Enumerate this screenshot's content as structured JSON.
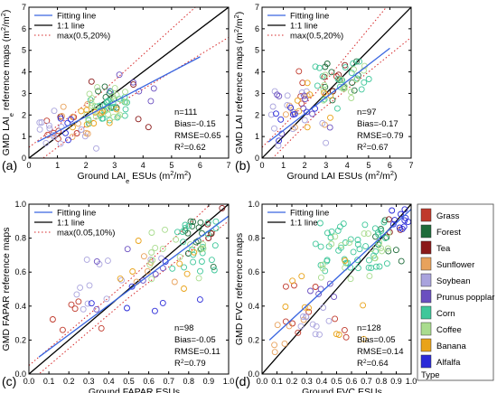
{
  "colors": {
    "Grass": "#c0392b",
    "Forest": "#1e6b3a",
    "Tea": "#8b1a1a",
    "Sunflower": "#e8a25c",
    "Soybean": "#a9a3dd",
    "Prunus popplar": "#6a4fc0",
    "Corn": "#3fc79a",
    "Coffee": "#a9dc8e",
    "Banana": "#e9a319",
    "Alfalfa": "#2a2ad8",
    "fit": "#3a66e0",
    "one_to_one": "#000000",
    "tolerance": "#d62728"
  },
  "legend": {
    "title": "Type",
    "types": [
      "Grass",
      "Forest",
      "Tea",
      "Sunflower",
      "Soybean",
      "Prunus popplar",
      "Corn",
      "Coffee",
      "Banana",
      "Alfalfa"
    ]
  },
  "chart_data": [
    {
      "type": "scatter",
      "panel": "(a)",
      "xlabel": "Ground LAIe ESUs (m2/m2)",
      "ylabel": "GMD LAIe reference maps (m2/m2)",
      "xlim": [
        0,
        7
      ],
      "ylim": [
        0,
        7
      ],
      "xticks": [
        "0",
        "1",
        "2",
        "3",
        "4",
        "5",
        "6",
        "7"
      ],
      "yticks": [
        "0",
        "1",
        "2",
        "3",
        "4",
        "5",
        "6",
        "7"
      ],
      "legend_lines": [
        "Fitting line",
        "1:1 line",
        "max(0.5,20%)"
      ],
      "stats": [
        "n=111",
        "Bias=-0.15",
        "RMSE=0.65",
        "R2=0.62"
      ],
      "fit": {
        "x": [
          0.3,
          6.0
        ],
        "y": [
          0.75,
          4.7
        ]
      },
      "tolerance": {
        "abs": 0.5,
        "rel": 0.2
      },
      "seed": 11,
      "clusters": [
        {
          "c": "Grass",
          "n": 7,
          "x": [
            0.5,
            2.0
          ],
          "y": [
            0.8,
            2.1
          ]
        },
        {
          "c": "Forest",
          "n": 8,
          "x": [
            2.3,
            3.3
          ],
          "y": [
            2.3,
            3.4
          ]
        },
        {
          "c": "Tea",
          "n": 5,
          "x": [
            1.0,
            4.3
          ],
          "y": [
            1.3,
            4.2
          ]
        },
        {
          "c": "Sunflower",
          "n": 8,
          "x": [
            0.7,
            2.5
          ],
          "y": [
            0.9,
            2.6
          ]
        },
        {
          "c": "Soybean",
          "n": 14,
          "x": [
            0.3,
            2.4
          ],
          "y": [
            0.4,
            2.2
          ]
        },
        {
          "c": "Prunus popplar",
          "n": 6,
          "x": [
            2.5,
            4.6
          ],
          "y": [
            2.6,
            3.9
          ]
        },
        {
          "c": "Corn",
          "n": 26,
          "x": [
            2.0,
            3.5
          ],
          "y": [
            1.6,
            3.2
          ]
        },
        {
          "c": "Coffee",
          "n": 22,
          "x": [
            2.0,
            3.4
          ],
          "y": [
            1.8,
            3.3
          ]
        },
        {
          "c": "Banana",
          "n": 10,
          "x": [
            1.5,
            3.1
          ],
          "y": [
            1.4,
            2.6
          ]
        },
        {
          "c": "Alfalfa",
          "n": 5,
          "x": [
            0.4,
            1.8
          ],
          "y": [
            0.7,
            1.9
          ]
        }
      ]
    },
    {
      "type": "scatter",
      "panel": "(b)",
      "xlabel": "Ground LAI ESUs (m2/m2)",
      "ylabel": "GMD LAI reference maps (m2/m2)",
      "xlim": [
        0,
        7
      ],
      "ylim": [
        0,
        7
      ],
      "xticks": [
        "0",
        "1",
        "2",
        "3",
        "4",
        "5",
        "6",
        "7"
      ],
      "yticks": [
        "0",
        "1",
        "2",
        "3",
        "4",
        "5",
        "6",
        "7"
      ],
      "legend_lines": [
        "Fitting line",
        "1:1 line",
        "max(0.5,20%)"
      ],
      "stats": [
        "n=97",
        "Bias=-0.17",
        "RMSE=0.79",
        "R2=0.67"
      ],
      "fit": {
        "x": [
          0.3,
          6.0
        ],
        "y": [
          0.75,
          5.1
        ]
      },
      "tolerance": {
        "abs": 0.5,
        "rel": 0.2
      },
      "seed": 23,
      "clusters": [
        {
          "c": "Grass",
          "n": 6,
          "x": [
            1.0,
            4.5
          ],
          "y": [
            1.5,
            4.3
          ]
        },
        {
          "c": "Forest",
          "n": 12,
          "x": [
            2.8,
            4.8
          ],
          "y": [
            2.6,
            4.7
          ]
        },
        {
          "c": "Tea",
          "n": 4,
          "x": [
            2.8,
            4.5
          ],
          "y": [
            3.0,
            4.4
          ]
        },
        {
          "c": "Sunflower",
          "n": 6,
          "x": [
            1.0,
            3.0
          ],
          "y": [
            1.3,
            3.0
          ]
        },
        {
          "c": "Soybean",
          "n": 14,
          "x": [
            0.4,
            3.0
          ],
          "y": [
            0.5,
            3.2
          ]
        },
        {
          "c": "Prunus popplar",
          "n": 8,
          "x": [
            0.6,
            3.2
          ],
          "y": [
            0.8,
            3.1
          ]
        },
        {
          "c": "Corn",
          "n": 17,
          "x": [
            2.5,
            5.2
          ],
          "y": [
            2.2,
            4.6
          ]
        },
        {
          "c": "Coffee",
          "n": 14,
          "x": [
            2.8,
            5.0
          ],
          "y": [
            2.6,
            4.5
          ]
        },
        {
          "c": "Banana",
          "n": 8,
          "x": [
            1.5,
            3.5
          ],
          "y": [
            1.4,
            3.5
          ]
        },
        {
          "c": "Alfalfa",
          "n": 8,
          "x": [
            0.5,
            2.5
          ],
          "y": [
            0.7,
            2.4
          ]
        }
      ]
    },
    {
      "type": "scatter",
      "panel": "(c)",
      "xlabel": "Ground FAPAR ESUs",
      "ylabel": "GMD FAPAR reference maps",
      "xlim": [
        0,
        1
      ],
      "ylim": [
        0,
        1
      ],
      "xticks": [
        "0.0",
        "0.1",
        "0.2",
        "0.3",
        "0.4",
        "0.5",
        "0.6",
        "0.7",
        "0.8",
        "0.9",
        "1.0"
      ],
      "yticks": [
        "0.0",
        "0.2",
        "0.4",
        "0.6",
        "0.8",
        "1.0"
      ],
      "legend_lines": [
        "Fitting line",
        "1:1 line",
        "max(0.05,10%)"
      ],
      "stats": [
        "n=98",
        "Bias=-0.05",
        "RMSE=0.11",
        "R2=0.79"
      ],
      "fit": {
        "x": [
          0.05,
          1.0
        ],
        "y": [
          0.1,
          0.93
        ]
      },
      "tolerance": {
        "abs": 0.05,
        "rel": 0.1
      },
      "seed": 37,
      "clusters": [
        {
          "c": "Grass",
          "n": 6,
          "x": [
            0.1,
            0.55
          ],
          "y": [
            0.25,
            0.5
          ]
        },
        {
          "c": "Forest",
          "n": 14,
          "x": [
            0.78,
            0.97
          ],
          "y": [
            0.6,
            0.9
          ]
        },
        {
          "c": "Tea",
          "n": 4,
          "x": [
            0.85,
            1.0
          ],
          "y": [
            0.8,
            1.0
          ]
        },
        {
          "c": "Sunflower",
          "n": 5,
          "x": [
            0.5,
            0.8
          ],
          "y": [
            0.45,
            0.7
          ]
        },
        {
          "c": "Soybean",
          "n": 12,
          "x": [
            0.2,
            0.75
          ],
          "y": [
            0.3,
            0.7
          ]
        },
        {
          "c": "Prunus popplar",
          "n": 6,
          "x": [
            0.3,
            0.9
          ],
          "y": [
            0.35,
            0.8
          ]
        },
        {
          "c": "Corn",
          "n": 22,
          "x": [
            0.7,
            0.95
          ],
          "y": [
            0.6,
            0.9
          ]
        },
        {
          "c": "Coffee",
          "n": 15,
          "x": [
            0.6,
            0.9
          ],
          "y": [
            0.55,
            0.85
          ]
        },
        {
          "c": "Banana",
          "n": 7,
          "x": [
            0.45,
            0.85
          ],
          "y": [
            0.45,
            0.8
          ]
        },
        {
          "c": "Alfalfa",
          "n": 7,
          "x": [
            0.25,
            0.9
          ],
          "y": [
            0.3,
            0.85
          ]
        }
      ]
    },
    {
      "type": "scatter",
      "panel": "(d)",
      "xlabel": "Ground FVC ESUs",
      "ylabel": "GMD FVC reference maps",
      "xlim": [
        0,
        1
      ],
      "ylim": [
        0,
        1
      ],
      "xticks": [
        "0.0",
        "0.1",
        "0.2",
        "0.3",
        "0.4",
        "0.5",
        "0.6",
        "0.7",
        "0.8",
        "0.9",
        "1.0"
      ],
      "yticks": [
        "0.0",
        "0.2",
        "0.4",
        "0.6",
        "0.8",
        "1.0"
      ],
      "legend_lines": [
        "Fitting line",
        "1:1 line"
      ],
      "stats": [
        "n=128",
        "Bias=0.05",
        "RMSE=0.14",
        "R2=0.64"
      ],
      "fit": {
        "x": [
          0.05,
          1.0
        ],
        "y": [
          0.2,
          0.97
        ]
      },
      "tolerance": null,
      "seed": 53,
      "clusters": [
        {
          "c": "Grass",
          "n": 10,
          "x": [
            0.1,
            0.65
          ],
          "y": [
            0.2,
            0.7
          ]
        },
        {
          "c": "Forest",
          "n": 8,
          "x": [
            0.75,
            0.95
          ],
          "y": [
            0.65,
            0.95
          ]
        },
        {
          "c": "Tea",
          "n": 3,
          "x": [
            0.85,
            0.98
          ],
          "y": [
            0.8,
            0.95
          ]
        },
        {
          "c": "Sunflower",
          "n": 6,
          "x": [
            0.05,
            0.45
          ],
          "y": [
            0.1,
            0.35
          ]
        },
        {
          "c": "Soybean",
          "n": 10,
          "x": [
            0.25,
            0.45
          ],
          "y": [
            0.2,
            0.4
          ]
        },
        {
          "c": "Prunus popplar",
          "n": 5,
          "x": [
            0.3,
            0.6
          ],
          "y": [
            0.3,
            0.55
          ]
        },
        {
          "c": "Corn",
          "n": 45,
          "x": [
            0.35,
            0.85
          ],
          "y": [
            0.6,
            0.9
          ]
        },
        {
          "c": "Coffee",
          "n": 20,
          "x": [
            0.35,
            0.85
          ],
          "y": [
            0.55,
            0.85
          ]
        },
        {
          "c": "Banana",
          "n": 10,
          "x": [
            0.15,
            0.7
          ],
          "y": [
            0.2,
            0.7
          ]
        },
        {
          "c": "Alfalfa",
          "n": 11,
          "x": [
            0.85,
            0.98
          ],
          "y": [
            0.85,
            0.98
          ]
        }
      ]
    }
  ]
}
